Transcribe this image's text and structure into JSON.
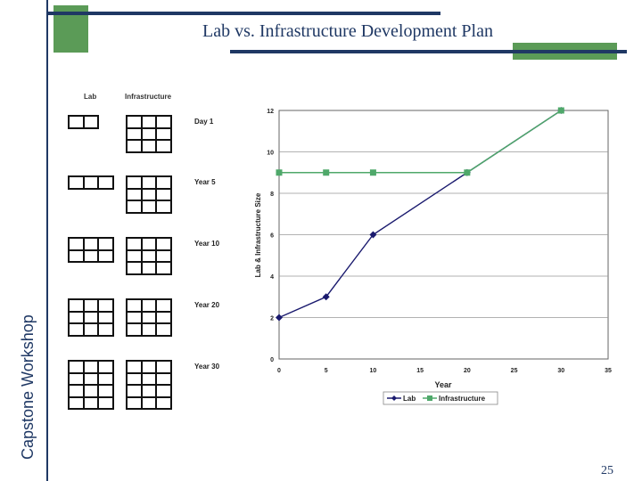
{
  "slide": {
    "title": "Lab vs. Infrastructure Development Plan",
    "side_label": "Capstone Workshop",
    "page_number": "25"
  },
  "grid_diagram": {
    "col_headers": [
      "Lab",
      "Infrastructure"
    ],
    "rows": [
      {
        "label": "Day 1",
        "lab": {
          "cols": 2,
          "rows": 1
        },
        "infra": {
          "cols": 3,
          "rows": 3
        }
      },
      {
        "label": "Year 5",
        "lab": {
          "cols": 3,
          "rows": 1
        },
        "infra": {
          "cols": 3,
          "rows": 3
        }
      },
      {
        "label": "Year 10",
        "lab": {
          "cols": 3,
          "rows": 2
        },
        "infra": {
          "cols": 3,
          "rows": 3
        }
      },
      {
        "label": "Year 20",
        "lab": {
          "cols": 3,
          "rows": 3
        },
        "infra": {
          "cols": 3,
          "rows": 3
        }
      },
      {
        "label": "Year 30",
        "lab": {
          "cols": 3,
          "rows": 4
        },
        "infra": {
          "cols": 3,
          "rows": 4
        }
      }
    ]
  },
  "chart_data": {
    "type": "line",
    "xlabel": "Year",
    "ylabel": "Lab & Infrastructure Size",
    "xlim": [
      0,
      35
    ],
    "ylim": [
      0,
      12
    ],
    "xticks": [
      "0",
      "5",
      "10",
      "15",
      "20",
      "25",
      "30",
      "35"
    ],
    "yticks": [
      "0",
      "2",
      "4",
      "6",
      "8",
      "10",
      "12"
    ],
    "grid": true,
    "legend_position": "bottom",
    "series": [
      {
        "name": "Lab",
        "color": "#1a1a6e",
        "marker": "diamond",
        "x": [
          0,
          5,
          10,
          20,
          30
        ],
        "y": [
          2,
          3,
          6,
          9,
          12
        ]
      },
      {
        "name": "Infrastructure",
        "color": "#4fa86a",
        "marker": "square",
        "x": [
          0,
          5,
          10,
          20,
          30
        ],
        "y": [
          9,
          9,
          9,
          9,
          12
        ]
      }
    ]
  }
}
